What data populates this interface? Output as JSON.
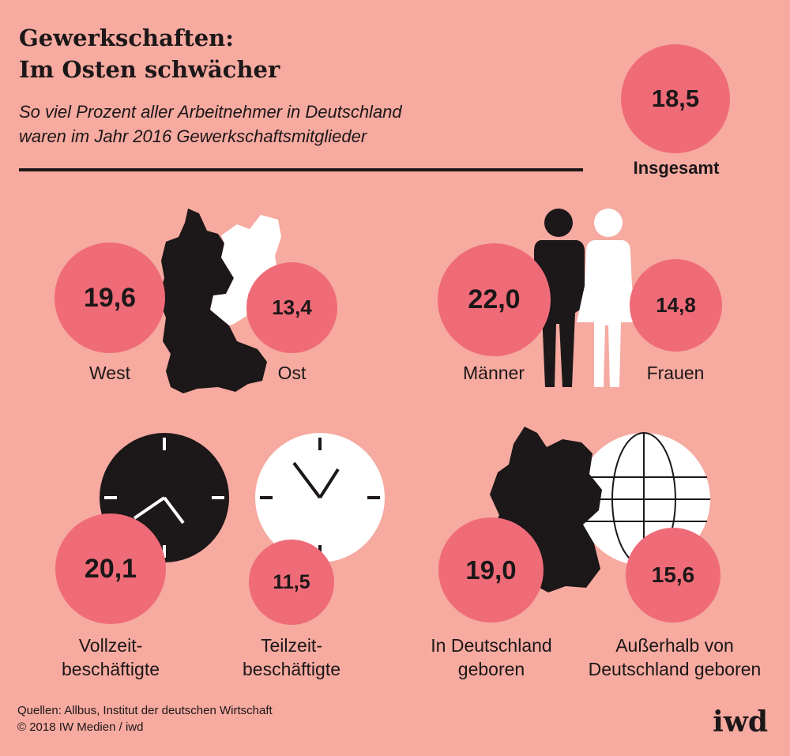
{
  "title_lines": [
    "Gewerkschaften:",
    "Im Osten schwächer"
  ],
  "subtitle_lines": [
    "So viel Prozent aller Arbeitnehmer in Deutschland",
    "waren im Jahr 2016 Gewerkschaftsmitglieder"
  ],
  "total": {
    "value": "18,5",
    "label": "Insgesamt"
  },
  "chart_data": {
    "type": "bubble",
    "title": "Gewerkschaften: Im Osten schwächer",
    "subtitle": "So viel Prozent aller Arbeitnehmer in Deutschland waren im Jahr 2016 Gewerkschaftsmitglieder",
    "unit": "Prozent",
    "total": {
      "label": "Insgesamt",
      "value": 18.5,
      "display": "18,5"
    },
    "groups": [
      {
        "items": [
          {
            "label": "West",
            "value": 19.6,
            "display": "19,6"
          },
          {
            "label": "Ost",
            "value": 13.4,
            "display": "13,4"
          }
        ]
      },
      {
        "items": [
          {
            "label": "Männer",
            "value": 22.0,
            "display": "22,0"
          },
          {
            "label": "Frauen",
            "value": 14.8,
            "display": "14,8"
          }
        ]
      },
      {
        "items": [
          {
            "label_lines": [
              "Vollzeit-",
              "beschäftigte"
            ],
            "value": 20.1,
            "display": "20,1"
          },
          {
            "label_lines": [
              "Teilzeit-",
              "beschäftigte"
            ],
            "value": 11.5,
            "display": "11,5"
          }
        ]
      },
      {
        "items": [
          {
            "label_lines": [
              "In Deutschland",
              "geboren"
            ],
            "value": 19.0,
            "display": "19,0"
          },
          {
            "label_lines": [
              "Außerhalb von",
              "Deutschland geboren"
            ],
            "value": 15.6,
            "display": "15,6"
          }
        ]
      }
    ]
  },
  "source_lines": [
    "Quellen: Allbus, Institut der deutschen Wirtschaft",
    "© 2018 IW Medien / iwd"
  ],
  "logo": "iwd",
  "colors": {
    "background": "#f6aaa0",
    "bubble": "#ef6b78",
    "dark": "#1c1718",
    "light": "#ffffff"
  }
}
